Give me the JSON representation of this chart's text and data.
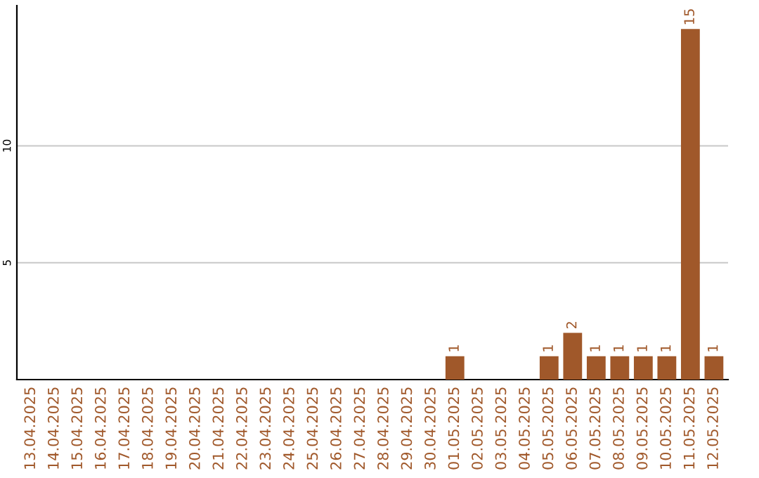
{
  "chart_data": {
    "type": "bar",
    "categories": [
      "13.04.2025",
      "14.04.2025",
      "15.04.2025",
      "16.04.2025",
      "17.04.2025",
      "18.04.2025",
      "19.04.2025",
      "20.04.2025",
      "21.04.2025",
      "22.04.2025",
      "23.04.2025",
      "24.04.2025",
      "25.04.2025",
      "26.04.2025",
      "27.04.2025",
      "28.04.2025",
      "29.04.2025",
      "30.04.2025",
      "01.05.2025",
      "02.05.2025",
      "03.05.2025",
      "04.05.2025",
      "05.05.2025",
      "06.05.2025",
      "07.05.2025",
      "08.05.2025",
      "09.05.2025",
      "10.05.2025",
      "11.05.2025",
      "12.05.2025"
    ],
    "values": [
      0,
      0,
      0,
      0,
      0,
      0,
      0,
      0,
      0,
      0,
      0,
      0,
      0,
      0,
      0,
      0,
      0,
      0,
      1,
      0,
      0,
      0,
      1,
      2,
      1,
      1,
      1,
      1,
      15,
      1
    ],
    "value_labels": [
      null,
      null,
      null,
      null,
      null,
      null,
      null,
      null,
      null,
      null,
      null,
      null,
      null,
      null,
      null,
      null,
      null,
      null,
      "1",
      null,
      null,
      null,
      "1",
      "2",
      "1",
      "1",
      "1",
      "1",
      "15",
      "1"
    ],
    "color": "#a0582a",
    "ylim": [
      0,
      16
    ],
    "yticks": [
      5,
      10
    ],
    "grid": "y",
    "legend": false
  }
}
